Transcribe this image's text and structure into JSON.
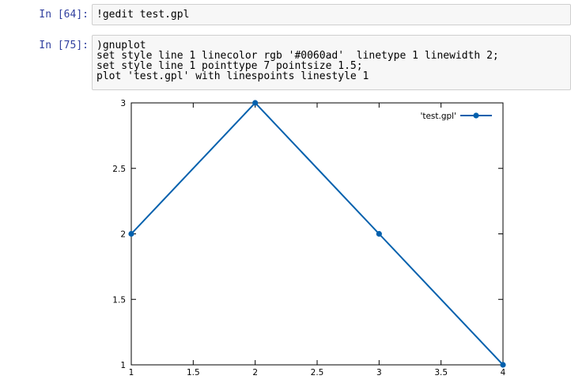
{
  "cells": [
    {
      "prompt": "In [64]:",
      "lines": [
        "!gedit test.gpl"
      ]
    },
    {
      "prompt": "In [75]:",
      "lines": [
        ")gnuplot",
        "set style line 1 linecolor rgb '#0060ad'  linetype 1 linewidth 2;",
        "set style line 1 pointtype 7 pointsize 1.5;",
        "plot 'test.gpl' with linespoints linestyle 1"
      ]
    }
  ],
  "chart_data": {
    "type": "line",
    "series": [
      {
        "name": "'test.gpl'",
        "x": [
          1,
          2,
          3,
          4
        ],
        "y": [
          2,
          3,
          2,
          1
        ]
      }
    ],
    "xlim": [
      1,
      4
    ],
    "ylim": [
      1,
      3
    ],
    "xticks": [
      "1",
      "1.5",
      "2",
      "2.5",
      "3",
      "3.5",
      "4"
    ],
    "yticks": [
      "1",
      "1.5",
      "2",
      "2.5",
      "3"
    ],
    "line_color": "#0060ad",
    "legend_position": "top-right",
    "grid": false
  }
}
